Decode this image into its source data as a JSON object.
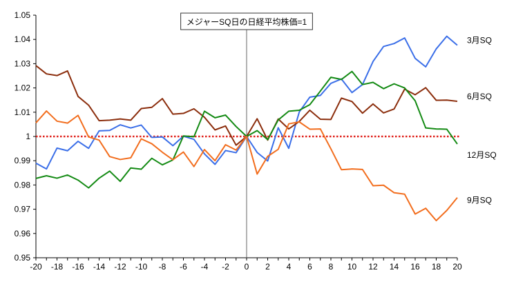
{
  "chart_data": {
    "type": "line",
    "title": "メジャーSQ日の日経平均株価=1",
    "xlabel": "",
    "ylabel": "",
    "xlim": [
      -20,
      20
    ],
    "ylim": [
      0.95,
      1.05
    ],
    "x_ticks": [
      -20,
      -18,
      -16,
      -14,
      -12,
      -10,
      -8,
      -6,
      -4,
      -2,
      0,
      2,
      4,
      6,
      8,
      10,
      12,
      14,
      16,
      18,
      20
    ],
    "y_ticks": [
      0.95,
      0.96,
      0.97,
      0.98,
      0.99,
      1,
      1.01,
      1.02,
      1.03,
      1.04,
      1.05
    ],
    "y_tick_labels": [
      "0.95",
      "0.96",
      "0.97",
      "0.98",
      "0.99",
      "1",
      "1.01",
      "1.02",
      "1.03",
      "1.04",
      "1.05"
    ],
    "grid": false,
    "x": [
      -20,
      -19,
      -18,
      -17,
      -16,
      -15,
      -14,
      -13,
      -12,
      -11,
      -10,
      -9,
      -8,
      -7,
      -6,
      -5,
      -4,
      -3,
      -2,
      -1,
      0,
      1,
      2,
      3,
      4,
      5,
      6,
      7,
      8,
      9,
      10,
      11,
      12,
      13,
      14,
      15,
      16,
      17,
      18,
      19,
      20
    ],
    "reference_line": {
      "y": 1,
      "color": "#e0201a",
      "style": "dotted"
    },
    "vertical_line": {
      "x": 0,
      "color": "#666666"
    },
    "series": [
      {
        "name": "3月SQ",
        "color": "#3a6ee8",
        "values": [
          0.989,
          0.9866,
          0.9952,
          0.9941,
          0.998,
          0.9951,
          1.0023,
          1.0025,
          1.0048,
          1.0035,
          1.0047,
          0.9996,
          0.9998,
          0.9962,
          1.0001,
          0.9988,
          0.9928,
          0.9885,
          0.9942,
          0.9933,
          1.0,
          0.9934,
          0.9899,
          1.0036,
          0.9951,
          1.0101,
          1.0162,
          1.0169,
          1.0219,
          1.0237,
          1.0181,
          1.0214,
          1.0309,
          1.0371,
          1.0383,
          1.0406,
          1.0322,
          1.0287,
          1.0361,
          1.0413,
          1.0376
        ]
      },
      {
        "name": "6月SQ",
        "color": "#8b2d0c",
        "values": [
          1.0292,
          1.0258,
          1.0251,
          1.027,
          1.0165,
          1.0129,
          1.0065,
          1.0067,
          1.0072,
          1.0067,
          1.0115,
          1.012,
          1.0156,
          1.0092,
          1.0095,
          1.0114,
          1.0079,
          1.0027,
          1.0043,
          0.9964,
          1.0,
          1.0073,
          0.9985,
          1.0072,
          1.0031,
          1.0062,
          1.0108,
          1.0071,
          1.007,
          1.0158,
          1.0144,
          1.0096,
          1.0134,
          1.0097,
          1.0113,
          1.0195,
          1.0172,
          1.0201,
          1.0149,
          1.015,
          1.0145
        ]
      },
      {
        "name": "12月SQ",
        "color": "#138a13",
        "values": [
          0.9827,
          0.9838,
          0.9828,
          0.9841,
          0.982,
          0.9788,
          0.9828,
          0.9857,
          0.9815,
          0.987,
          0.9865,
          0.991,
          0.9883,
          0.9903,
          1.0002,
          0.9999,
          1.0104,
          1.0077,
          1.0088,
          1.0041,
          1.0,
          1.0024,
          0.9987,
          1.0068,
          1.0104,
          1.0108,
          1.0131,
          1.0187,
          1.0244,
          1.0235,
          1.0268,
          1.0214,
          1.0223,
          1.0197,
          1.0217,
          1.02,
          1.0147,
          1.0035,
          1.0031,
          1.003,
          0.9969
        ]
      },
      {
        "name": "9月SQ",
        "color": "#f26d1d",
        "values": [
          1.0056,
          1.0105,
          1.0063,
          1.0055,
          1.0087,
          0.9998,
          0.9985,
          0.9917,
          0.9905,
          0.9912,
          0.999,
          0.997,
          0.9935,
          0.9904,
          0.9936,
          0.9876,
          0.9946,
          0.99,
          0.9966,
          0.9944,
          1.0,
          0.9845,
          0.9918,
          0.9947,
          1.0052,
          1.006,
          1.003,
          1.0031,
          0.9949,
          0.9863,
          0.9866,
          0.9864,
          0.9797,
          0.9799,
          0.9768,
          0.9762,
          0.968,
          0.9704,
          0.9653,
          0.9695,
          0.9748
        ]
      }
    ]
  }
}
